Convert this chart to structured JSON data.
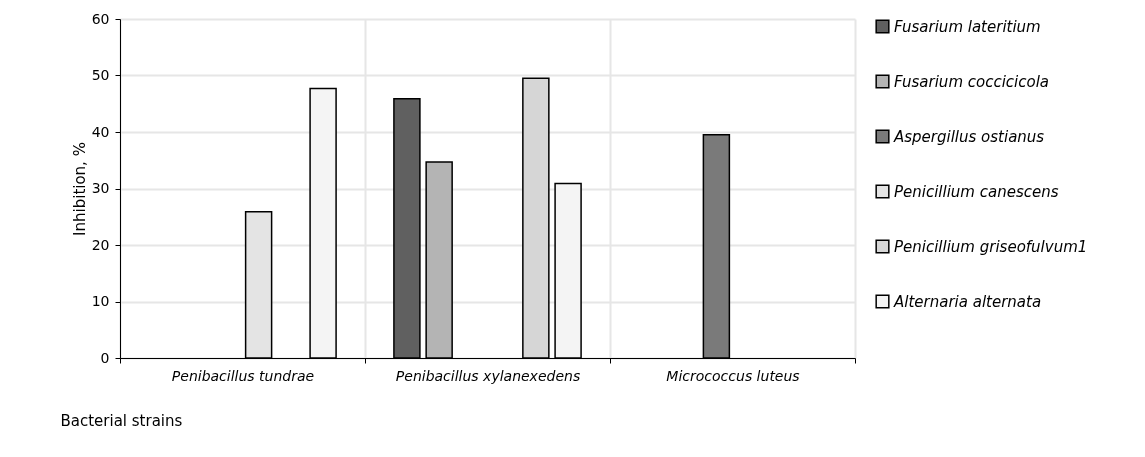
{
  "chart_data": {
    "type": "bar",
    "ylabel": "Inhibition, %",
    "xlabel": "Bacterial strains",
    "categories": [
      "Penibacillus tundrae",
      "Penibacillus xylanexedens",
      "Micrococcus luteus"
    ],
    "series": [
      {
        "name": "Fusarium lateritium",
        "color": "#606060",
        "values": [
          null,
          45.9,
          null
        ]
      },
      {
        "name": "Fusarium coccicicola",
        "color": "#b4b4b4",
        "values": [
          null,
          34.7,
          null
        ]
      },
      {
        "name": "Aspergillus ostianus",
        "color": "#7a7a7a",
        "values": [
          null,
          null,
          39.5
        ]
      },
      {
        "name": "Penicillium canescens",
        "color": "#e4e4e4",
        "values": [
          25.9,
          null,
          null
        ]
      },
      {
        "name": "Penicillium griseofulvum1",
        "color": "#d6d6d6",
        "values": [
          null,
          49.5,
          null
        ]
      },
      {
        "name": "Alternaria alternata",
        "color": "#f4f4f4",
        "values": [
          47.7,
          30.9,
          null
        ]
      }
    ],
    "ylim": [
      0,
      60
    ],
    "yticks": [
      0,
      10,
      20,
      30,
      40,
      50,
      60
    ],
    "grid": true,
    "legend": "right"
  }
}
